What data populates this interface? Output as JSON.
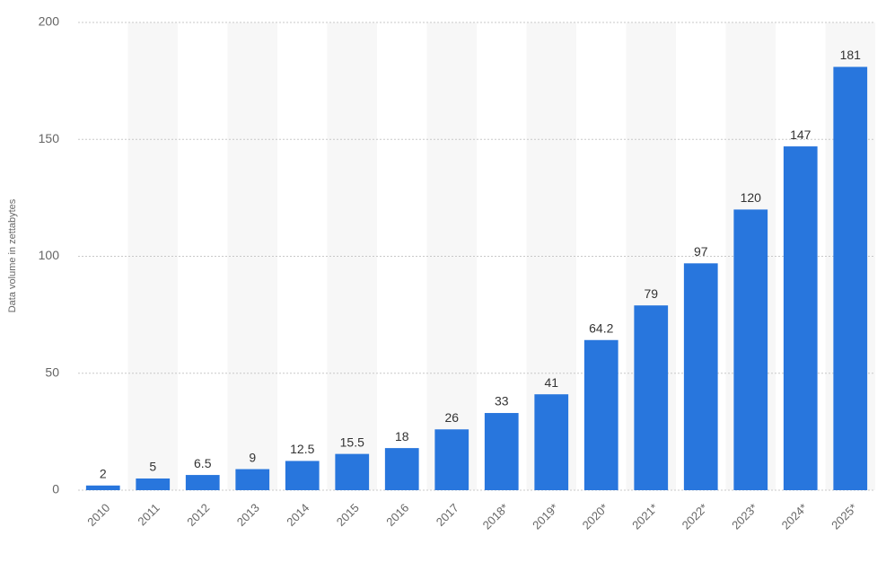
{
  "chart_data": {
    "type": "bar",
    "y_label": "Data volume in zettabytes",
    "categories": [
      "2010",
      "2011",
      "2012",
      "2013",
      "2014",
      "2015",
      "2016",
      "2017",
      "2018*",
      "2019*",
      "2020*",
      "2021*",
      "2022*",
      "2023*",
      "2024*",
      "2025*"
    ],
    "values": [
      2,
      5,
      6.5,
      9,
      12.5,
      15.5,
      18,
      26,
      33,
      41,
      64.2,
      79,
      97,
      120,
      147,
      181
    ],
    "color": "#2876dd",
    "ylim": [
      0,
      200
    ],
    "yticks": [
      0,
      50,
      100,
      150,
      200
    ],
    "grid": true
  }
}
